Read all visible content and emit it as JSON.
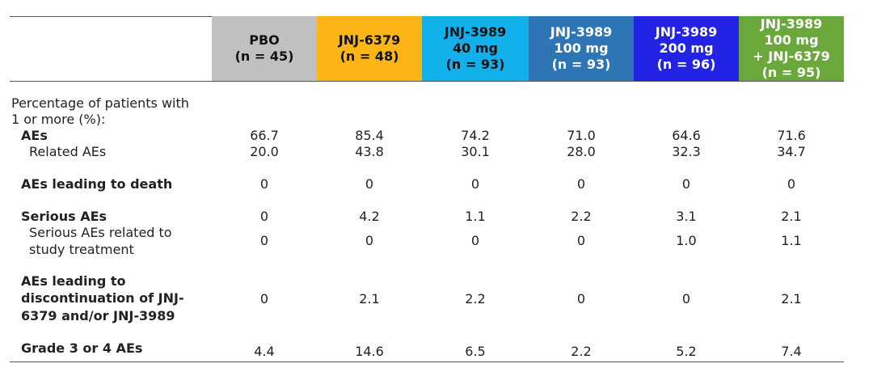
{
  "table": {
    "headers": [
      [
        "PBO",
        "(n = 45)"
      ],
      [
        "JNJ-6379",
        "(n = 48)"
      ],
      [
        "JNJ-3989",
        "40 mg",
        "(n = 93)"
      ],
      [
        "JNJ-3989",
        "100 mg",
        "(n = 93)"
      ],
      [
        "JNJ-3989",
        "200 mg",
        "(n = 96)"
      ],
      [
        "JNJ-3989",
        "100 mg",
        "+ JNJ-6379",
        "(n = 95)"
      ]
    ],
    "rows": [
      {
        "label": [
          "Percentage of patients with",
          "1 or more (%):"
        ]
      },
      {
        "label": [
          "AEs"
        ],
        "values": [
          "66.7",
          "85.4",
          "74.2",
          "71.0",
          "64.6",
          "71.6"
        ]
      },
      {
        "label": [
          "Related AEs"
        ],
        "values": [
          "20.0",
          "43.8",
          "30.1",
          "28.0",
          "32.3",
          "34.7"
        ]
      },
      {
        "label": [
          "AEs leading to death"
        ],
        "values": [
          "0",
          "0",
          "0",
          "0",
          "0",
          "0"
        ]
      },
      {
        "label": [
          "Serious AEs"
        ],
        "values": [
          "0",
          "4.2",
          "1.1",
          "2.2",
          "3.1",
          "2.1"
        ]
      },
      {
        "label": [
          "Serious AEs related to",
          "study treatment"
        ],
        "values": [
          "0",
          "0",
          "0",
          "0",
          "1.0",
          "1.1"
        ]
      },
      {
        "label": [
          "AEs leading to",
          "discontinuation of JNJ-",
          "6379 and/or JNJ-3989"
        ],
        "values": [
          "0",
          "2.1",
          "2.2",
          "0",
          "0",
          "2.1"
        ]
      },
      {
        "label": [
          "Grade 3 or 4 AEs"
        ],
        "values": [
          "4.4",
          "14.6",
          "6.5",
          "2.2",
          "5.2",
          "7.4"
        ]
      }
    ]
  }
}
